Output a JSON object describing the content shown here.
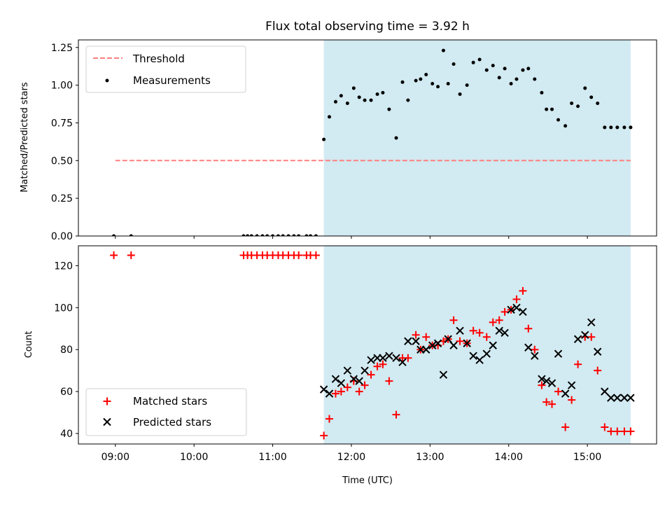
{
  "title": "Flux total observing time = 3.92 h",
  "colors": {
    "shade": "#add8e6",
    "threshold": "#ff8080",
    "matched": "#ff0000",
    "predicted": "#000000",
    "measurement": "#000000"
  },
  "chart_data": [
    {
      "type": "scatter",
      "panel": "top",
      "ylabel": "Matched/Predicted stars",
      "xlim": [
        8.53,
        15.88
      ],
      "ylim": [
        0,
        1.3
      ],
      "yticks": [
        0,
        0.25,
        0.5,
        0.75,
        1.0,
        1.25
      ],
      "ytick_labels": [
        "0.00",
        "0.25",
        "0.50",
        "0.75",
        "1.00",
        "1.25"
      ],
      "threshold": {
        "y": 0.5,
        "x_range": [
          9.0,
          15.55
        ]
      },
      "shaded_span": [
        11.65,
        15.55
      ],
      "legend": {
        "location": "upper-left",
        "threshold_label": "Threshold",
        "measurements_label": "Measurements"
      },
      "series": [
        {
          "name": "Measurements",
          "x": [
            8.98,
            9.2,
            10.63,
            10.68,
            10.73,
            10.8,
            10.87,
            10.93,
            11.0,
            11.07,
            11.13,
            11.2,
            11.27,
            11.33,
            11.43,
            11.48,
            11.55,
            11.65,
            11.72,
            11.8,
            11.87,
            11.95,
            12.03,
            12.1,
            12.17,
            12.25,
            12.33,
            12.4,
            12.48,
            12.57,
            12.65,
            12.72,
            12.82,
            12.88,
            12.95,
            13.03,
            13.1,
            13.17,
            13.23,
            13.3,
            13.38,
            13.47,
            13.55,
            13.63,
            13.72,
            13.8,
            13.88,
            13.95,
            14.03,
            14.1,
            14.18,
            14.25,
            14.33,
            14.42,
            14.48,
            14.55,
            14.63,
            14.72,
            14.8,
            14.88,
            14.97,
            15.05,
            15.13,
            15.22,
            15.3,
            15.38,
            15.47,
            15.55
          ],
          "y": [
            0.0,
            0.0,
            0.0,
            0.0,
            0.0,
            0.0,
            0.0,
            0.0,
            0.0,
            0.0,
            0.0,
            0.0,
            0.0,
            0.0,
            0.0,
            0.0,
            0.0,
            0.64,
            0.79,
            0.89,
            0.93,
            0.88,
            0.98,
            0.92,
            0.9,
            0.9,
            0.94,
            0.95,
            0.84,
            0.65,
            1.02,
            0.9,
            1.03,
            1.04,
            1.07,
            1.01,
            0.99,
            1.23,
            1.01,
            1.14,
            0.94,
            1.0,
            1.15,
            1.17,
            1.1,
            1.13,
            1.05,
            1.11,
            1.01,
            1.04,
            1.1,
            1.11,
            1.04,
            0.95,
            0.84,
            0.84,
            0.77,
            0.73,
            0.88,
            0.86,
            0.98,
            0.92,
            0.88,
            0.72,
            0.72,
            0.72,
            0.72,
            0.72
          ]
        }
      ]
    },
    {
      "type": "scatter",
      "panel": "bottom",
      "xlabel": "Time (UTC)",
      "ylabel": "Count",
      "xlim": [
        8.53,
        15.88
      ],
      "ylim": [
        35,
        129.5
      ],
      "xticks": [
        9,
        10,
        11,
        12,
        13,
        14,
        15
      ],
      "xtick_labels": [
        "09:00",
        "10:00",
        "11:00",
        "12:00",
        "13:00",
        "14:00",
        "15:00"
      ],
      "yticks": [
        40,
        60,
        80,
        100,
        120
      ],
      "ytick_labels": [
        "40",
        "60",
        "80",
        "100",
        "120"
      ],
      "shaded_span": [
        11.65,
        15.55
      ],
      "legend": {
        "location": "lower-left",
        "matched_label": "Matched stars",
        "predicted_label": "Predicted stars"
      },
      "series": [
        {
          "name": "Matched stars",
          "marker": "plus",
          "x": [
            8.98,
            9.2,
            10.63,
            10.68,
            10.73,
            10.8,
            10.87,
            10.93,
            11.0,
            11.07,
            11.13,
            11.2,
            11.27,
            11.33,
            11.43,
            11.48,
            11.55,
            11.65,
            11.72,
            11.8,
            11.87,
            11.95,
            12.03,
            12.1,
            12.17,
            12.25,
            12.33,
            12.4,
            12.48,
            12.57,
            12.65,
            12.72,
            12.82,
            12.88,
            12.95,
            13.03,
            13.1,
            13.17,
            13.23,
            13.3,
            13.38,
            13.47,
            13.55,
            13.63,
            13.72,
            13.8,
            13.88,
            13.95,
            14.03,
            14.1,
            14.18,
            14.25,
            14.33,
            14.42,
            14.48,
            14.55,
            14.63,
            14.72,
            14.8,
            14.88,
            14.97,
            15.05,
            15.13,
            15.22,
            15.3,
            15.38,
            15.47,
            15.55
          ],
          "y": [
            125,
            125,
            125,
            125,
            125,
            125,
            125,
            125,
            125,
            125,
            125,
            125,
            125,
            125,
            125,
            125,
            125,
            39,
            47,
            59,
            60,
            62,
            65,
            60,
            63,
            68,
            72,
            73,
            65,
            49,
            76,
            76,
            87,
            80,
            86,
            82,
            82,
            84,
            85,
            94,
            84,
            83,
            89,
            88,
            86,
            93,
            94,
            98,
            99,
            104,
            108,
            90,
            80,
            63,
            55,
            54,
            60,
            43,
            56,
            73,
            86,
            86,
            70,
            43,
            41,
            41,
            41,
            41
          ]
        },
        {
          "name": "Predicted stars",
          "marker": "x",
          "x": [
            11.65,
            11.72,
            11.8,
            11.87,
            11.95,
            12.03,
            12.1,
            12.17,
            12.25,
            12.33,
            12.4,
            12.48,
            12.57,
            12.65,
            12.72,
            12.82,
            12.88,
            12.95,
            13.03,
            13.1,
            13.17,
            13.23,
            13.3,
            13.38,
            13.47,
            13.55,
            13.63,
            13.72,
            13.8,
            13.88,
            13.95,
            14.03,
            14.1,
            14.18,
            14.25,
            14.33,
            14.42,
            14.48,
            14.55,
            14.63,
            14.72,
            14.8,
            14.88,
            14.97,
            15.05,
            15.13,
            15.22,
            15.3,
            15.38,
            15.47,
            15.55
          ],
          "y": [
            61,
            59,
            66,
            64,
            70,
            66,
            65,
            70,
            75,
            76,
            76,
            77,
            76,
            74,
            84,
            84,
            80,
            80,
            82,
            83,
            68,
            85,
            82,
            89,
            83,
            77,
            75,
            78,
            82,
            89,
            88,
            99,
            100,
            98,
            81,
            77,
            66,
            65,
            64,
            78,
            59,
            63,
            85,
            87,
            93,
            79,
            60,
            57,
            57,
            57,
            57
          ]
        }
      ]
    }
  ]
}
